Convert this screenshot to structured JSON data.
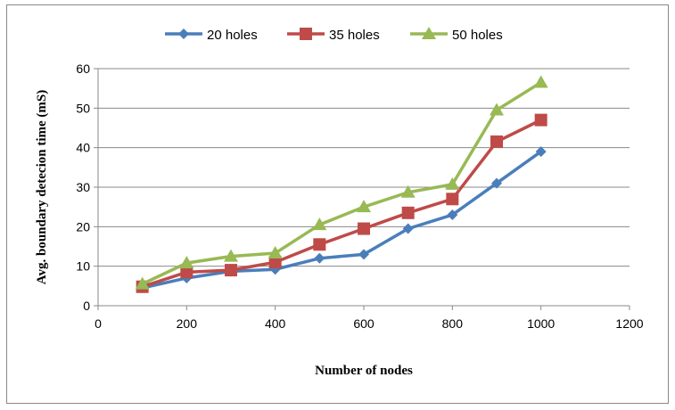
{
  "chart_data": {
    "type": "line",
    "title": "",
    "xlabel": "Number of nodes",
    "ylabel": "Avg. boundary detecion time (mS)",
    "xlim": [
      0,
      1200
    ],
    "ylim": [
      0,
      60
    ],
    "xticks": [
      0,
      200,
      400,
      600,
      800,
      1000,
      1200
    ],
    "yticks": [
      0,
      10,
      20,
      30,
      40,
      50,
      60
    ],
    "grid": "horizontal",
    "legend_position": "top",
    "x": [
      100,
      200,
      300,
      400,
      500,
      600,
      700,
      800,
      900,
      1000
    ],
    "series": [
      {
        "name": "20 holes",
        "color": "#4a7ebb",
        "marker": "diamond",
        "values": [
          4.5,
          7,
          8.7,
          9.2,
          12,
          13,
          19.5,
          23,
          31,
          39
        ]
      },
      {
        "name": "35 holes",
        "color": "#be4b48",
        "marker": "square",
        "values": [
          4.8,
          8.5,
          9,
          11,
          15.5,
          19.5,
          23.5,
          27,
          41.5,
          47
        ]
      },
      {
        "name": "50 holes",
        "color": "#98b954",
        "marker": "triangle",
        "values": [
          5.5,
          10.8,
          12.5,
          13.3,
          20.5,
          25,
          28.7,
          30.7,
          49.5,
          56.5
        ]
      }
    ]
  }
}
